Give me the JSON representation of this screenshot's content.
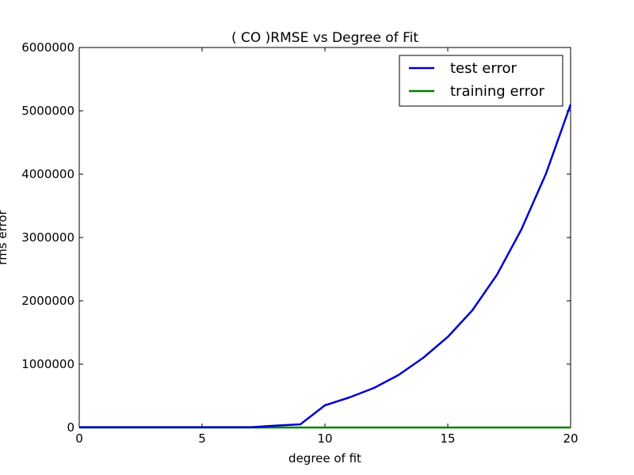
{
  "chart_data": {
    "type": "line",
    "title": "(  CO  )RMSE vs Degree of Fit",
    "xlabel": "degree of fit",
    "ylabel": "rms error",
    "xlim": [
      0,
      20
    ],
    "ylim": [
      0,
      6000000
    ],
    "xticks": [
      0,
      5,
      10,
      15,
      20
    ],
    "xtick_labels": [
      "0",
      "5",
      "10",
      "15",
      "20"
    ],
    "yticks": [
      0,
      1000000,
      2000000,
      3000000,
      4000000,
      5000000,
      6000000
    ],
    "ytick_labels": [
      "0",
      "1000000",
      "2000000",
      "3000000",
      "4000000",
      "5000000",
      "6000000"
    ],
    "grid": false,
    "legend_position": "top-right",
    "x": [
      0,
      1,
      2,
      3,
      4,
      5,
      6,
      7,
      8,
      9,
      10,
      11,
      12,
      13,
      14,
      15,
      16,
      17,
      18,
      19,
      20
    ],
    "series": [
      {
        "name": "test error",
        "color": "#0000cc",
        "values": [
          5000,
          5000,
          5000,
          5000,
          5000,
          5000,
          5000,
          5000,
          30000,
          50000,
          350000,
          475000,
          625000,
          830000,
          1100000,
          1430000,
          1850000,
          2410000,
          3130000,
          4010000,
          5100000
        ]
      },
      {
        "name": "training error",
        "color": "#008000",
        "values": [
          0,
          0,
          0,
          0,
          0,
          0,
          0,
          0,
          0,
          0,
          0,
          0,
          0,
          0,
          0,
          0,
          0,
          0,
          0,
          0,
          0
        ]
      }
    ]
  }
}
